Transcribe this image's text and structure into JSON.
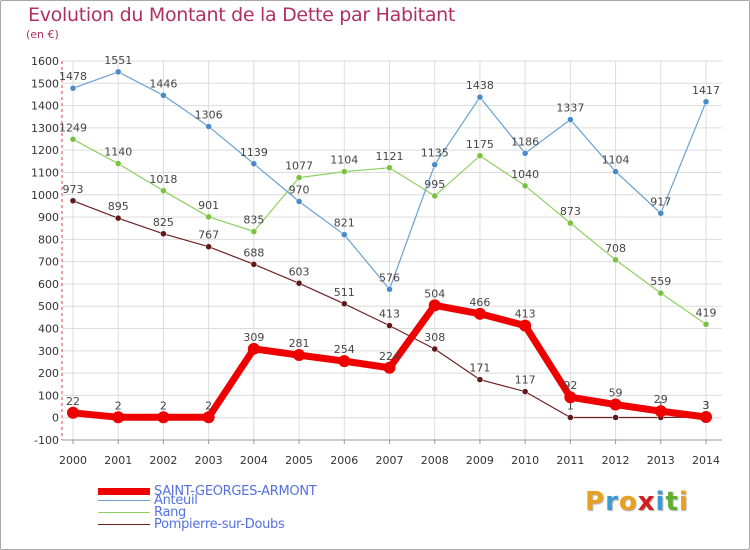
{
  "title": "Evolution du Montant de la Dette par Habitant",
  "unit": "(en €)",
  "logo": {
    "text": "Proxiti",
    "colors": [
      "#e8a020",
      "#3a9ad8",
      "#e8a020",
      "#d02020",
      "#3a9ad8",
      "#60b030",
      "#e8a020"
    ]
  },
  "chart_data": {
    "type": "line",
    "title": "Evolution du Montant de la Dette par Habitant",
    "ylabel": "(en €)",
    "xlabel": "",
    "ylim": [
      -100,
      1600
    ],
    "yticks": [
      -100,
      0,
      100,
      200,
      300,
      400,
      500,
      600,
      700,
      800,
      900,
      1000,
      1100,
      1200,
      1300,
      1400,
      1500,
      1600
    ],
    "grid": true,
    "legend": "bottom-left",
    "x": [
      "2000",
      "2001",
      "2002",
      "2003",
      "2004",
      "2005",
      "2006",
      "2007",
      "2008",
      "2009",
      "2010",
      "2011",
      "2012",
      "2013",
      "2014"
    ],
    "series": [
      {
        "name": "Pompierre-sur-Doubs",
        "color": "#702020",
        "marker": "#601818",
        "width": 1.2,
        "r": 3,
        "values": [
          973,
          895,
          825,
          767,
          688,
          603,
          511,
          413,
          308,
          171,
          117,
          1,
          1,
          1,
          3
        ],
        "labels": [
          "973",
          "895",
          "825",
          "767",
          "688",
          "603",
          "511",
          "413",
          "308",
          "171",
          "117",
          "1",
          "1",
          "1",
          "3"
        ]
      },
      {
        "name": "Rang",
        "color": "#90d060",
        "marker": "#7cc040",
        "width": 1.2,
        "r": 3,
        "values": [
          1249,
          1140,
          1018,
          901,
          835,
          1077,
          1104,
          1121,
          995,
          1175,
          1040,
          873,
          708,
          559,
          419
        ],
        "labels": [
          "1249",
          "1140",
          "1018",
          "901",
          "835",
          "1077",
          "1104",
          "1121",
          "995",
          "1175",
          "1040",
          "873",
          "708",
          "559",
          "419"
        ]
      },
      {
        "name": "Anteuil",
        "color": "#6aa0d0",
        "marker": "#4a8ac8",
        "width": 1.2,
        "r": 3,
        "values": [
          1478,
          1551,
          1446,
          1306,
          1139,
          970,
          821,
          576,
          1135,
          1438,
          1186,
          1337,
          1104,
          917,
          1417
        ],
        "labels": [
          "1478",
          "1551",
          "1446",
          "1306",
          "1139",
          "970",
          "821",
          "576",
          "1135",
          "1438",
          "1186",
          "1337",
          "1104",
          "917",
          "1417"
        ]
      },
      {
        "name": "SAINT-GEORGES-ARMONT",
        "color": "#ee0000",
        "marker": "#ee0000",
        "width": 7,
        "r": 6,
        "values": [
          22,
          2,
          2,
          2,
          309,
          281,
          254,
          224,
          504,
          466,
          413,
          92,
          59,
          29,
          3
        ],
        "labels": [
          "22",
          "2",
          "2",
          "2",
          "309",
          "281",
          "254",
          "224",
          "504",
          "466",
          "413",
          "92",
          "59",
          "29",
          "3"
        ]
      }
    ]
  },
  "legend": [
    {
      "name": "SAINT-GEORGES-ARMONT",
      "color": "#ee0000",
      "thick": true
    },
    {
      "name": "Anteuil",
      "color": "#6aa0d0",
      "thick": false
    },
    {
      "name": "Rang",
      "color": "#90d060",
      "thick": false
    },
    {
      "name": "Pompierre-sur-Doubs",
      "color": "#702020",
      "thick": false
    }
  ]
}
